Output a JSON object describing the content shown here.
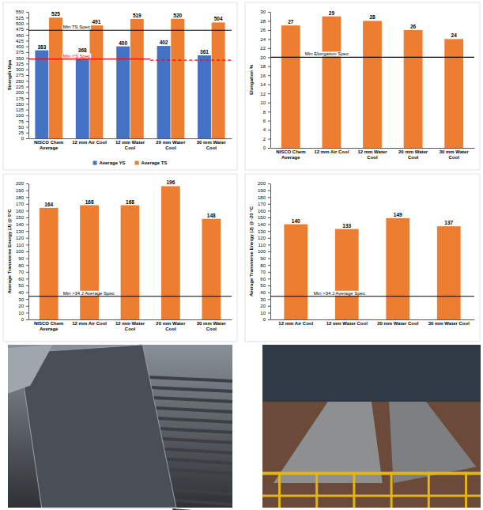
{
  "chart_data": [
    {
      "type": "bar",
      "y_label": "Strength Mpa",
      "categories": [
        "NISCO Chem Average",
        "12 mm Air Cool",
        "12 mm Water Cool",
        "20 mm Water Cool",
        "30 mm Water Cool"
      ],
      "series": [
        {
          "name": "Average YS",
          "color": "#4472c4",
          "values": [
            383,
            368,
            400,
            402,
            361
          ]
        },
        {
          "name": "Average TS",
          "color": "#ed7d31",
          "values": [
            525,
            491,
            519,
            520,
            504
          ]
        }
      ],
      "ylim": [
        0,
        550
      ],
      "yticks": [
        0,
        25,
        50,
        75,
        100,
        125,
        150,
        175,
        200,
        225,
        250,
        275,
        300,
        325,
        350,
        375,
        400,
        425,
        450,
        475,
        500,
        525,
        550
      ],
      "grid": false,
      "data_labels": true,
      "legend": "bottom",
      "reference_lines": [
        {
          "label": "Min TS Spec",
          "value": 470,
          "color": "#000000"
        },
        {
          "label": "Min YS Spec",
          "value": 345,
          "color": "#ff0000",
          "x_range": [
            "NISCO Chem Average",
            "12 mm Water Cool"
          ]
        },
        {
          "value": 340,
          "color": "#ff0000",
          "line_style": "dashed",
          "x_range": [
            "20 mm Water Cool",
            "30 mm Water Cool"
          ]
        }
      ]
    },
    {
      "type": "bar",
      "y_label": "Elongation %",
      "categories": [
        "NISCO Chem Average",
        "12 mm Air Cool",
        "12 mm Water Cool",
        "20 mm Water Cool",
        "30 mm Water Cool"
      ],
      "values": [
        27,
        29,
        28,
        26,
        24
      ],
      "color": "#ed7d31",
      "ylim": [
        0,
        30
      ],
      "yticks": [
        0,
        2,
        4,
        6,
        8,
        10,
        12,
        14,
        16,
        18,
        20,
        22,
        24,
        26,
        28,
        30
      ],
      "grid": false,
      "data_labels": true,
      "reference_lines": [
        {
          "label": "Min Elongation Spec",
          "value": 20,
          "color": "#000000"
        }
      ]
    },
    {
      "type": "bar",
      "y_label": "Average Transverse Energy (J) @ 0°C",
      "categories": [
        "NISCO Chem Average",
        "12 mm Air Cool",
        "12 mm Water Cool",
        "20 mm Water Cool",
        "30 mm Water Cool"
      ],
      "values": [
        164,
        168,
        168,
        196,
        148
      ],
      "color": "#ed7d31",
      "ylim": [
        0,
        200
      ],
      "yticks": [
        0,
        10,
        20,
        30,
        40,
        50,
        60,
        70,
        80,
        90,
        100,
        110,
        120,
        130,
        140,
        150,
        160,
        170,
        180,
        190,
        200
      ],
      "grid": false,
      "data_labels": true,
      "reference_lines": [
        {
          "label": "Min >34 J Average Spec",
          "value": 34,
          "color": "#000000"
        }
      ]
    },
    {
      "type": "bar",
      "y_label": "Average Transverse Energy (J) @ -20 °C",
      "categories": [
        "12 mm Air Cool",
        "12 mm Water Cool",
        "20 mm Water Cool",
        "30 mm Water Cool"
      ],
      "values": [
        140,
        133,
        149,
        137
      ],
      "color": "#ed7d31",
      "ylim": [
        0,
        200
      ],
      "yticks": [
        0,
        10,
        20,
        30,
        40,
        50,
        60,
        70,
        80,
        90,
        100,
        110,
        120,
        130,
        140,
        150,
        160,
        170,
        180,
        190,
        200
      ],
      "grid": false,
      "data_labels": true,
      "reference_lines": [
        {
          "label": "Min >34 J Average Spec",
          "value": 34,
          "color": "#000000"
        }
      ]
    }
  ]
}
